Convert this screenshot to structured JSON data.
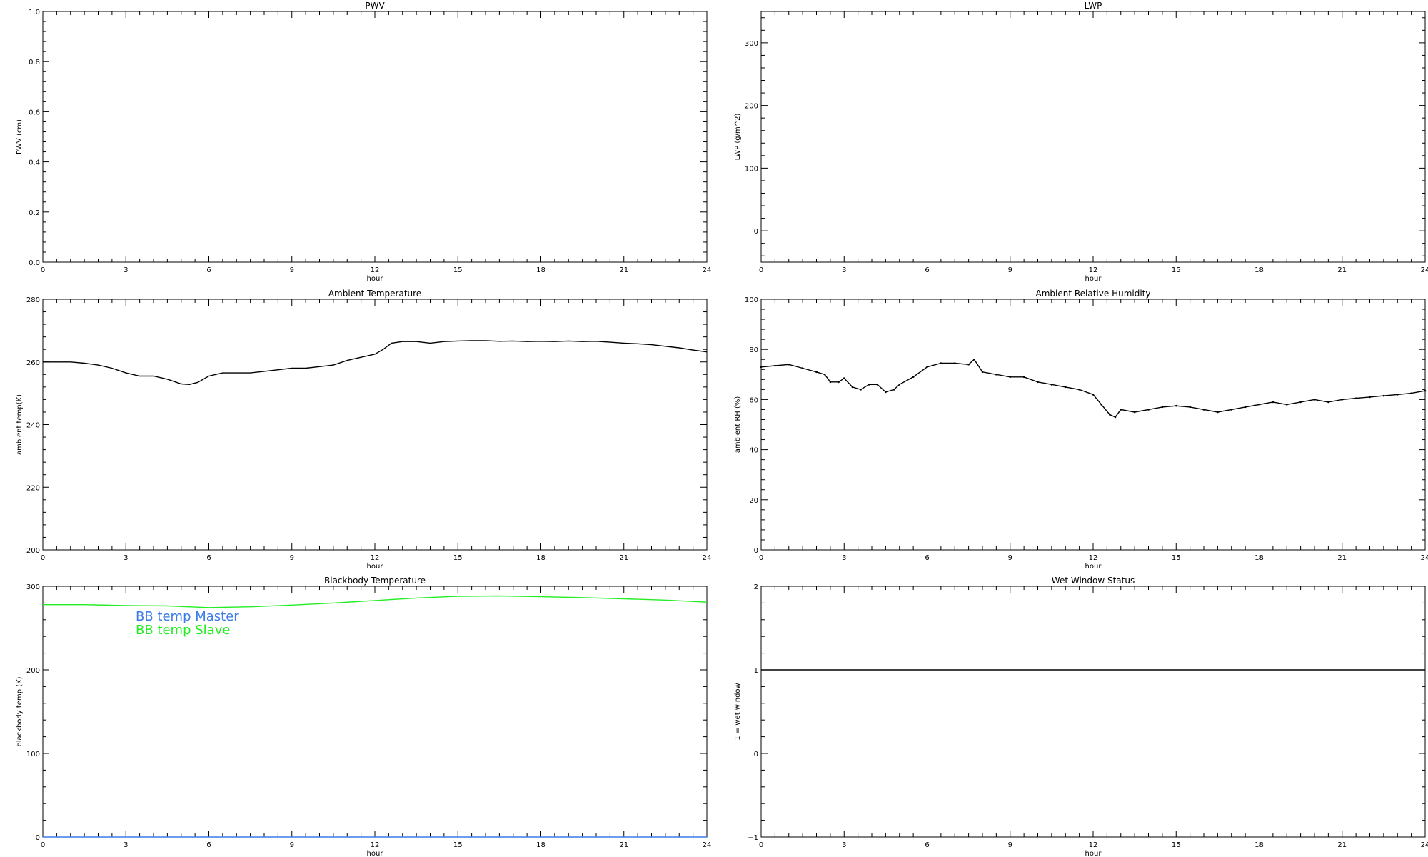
{
  "chart_data": [
    {
      "type": "scatter",
      "title": "PWV",
      "xlabel": "hour",
      "ylabel": "PWV (cm)",
      "xlim": [
        0,
        24
      ],
      "ylim": [
        0,
        1
      ],
      "xticks": [
        "0",
        "3",
        "6",
        "9",
        "12",
        "15",
        "18",
        "21",
        "24"
      ],
      "yticks": [
        "0.0",
        "0.2",
        "0.4",
        "0.6",
        "0.8",
        "1.0"
      ],
      "series": []
    },
    {
      "type": "scatter",
      "title": "LWP",
      "xlabel": "hour",
      "ylabel": "LWP (g/m^2)",
      "xlim": [
        0,
        24
      ],
      "ylim": [
        -50,
        350
      ],
      "xticks": [
        "0",
        "3",
        "6",
        "9",
        "12",
        "15",
        "18",
        "21",
        "24"
      ],
      "yticks": [
        "0",
        "100",
        "200",
        "300"
      ],
      "series": []
    },
    {
      "type": "line",
      "title": "Ambient Temperature",
      "xlabel": "hour",
      "ylabel": "ambient temp(K)",
      "xlim": [
        0,
        24
      ],
      "ylim": [
        200,
        280
      ],
      "xticks": [
        "0",
        "3",
        "6",
        "9",
        "12",
        "15",
        "18",
        "21",
        "24"
      ],
      "yticks": [
        "200",
        "220",
        "240",
        "260",
        "280"
      ],
      "series": [
        {
          "color": "#000000",
          "x": [
            0,
            0.5,
            1,
            1.5,
            2,
            2.5,
            3,
            3.5,
            4,
            4.5,
            5,
            5.3,
            5.6,
            6,
            6.5,
            7,
            7.5,
            8,
            8.5,
            9,
            9.5,
            10,
            10.5,
            11,
            11.5,
            12,
            12.3,
            12.6,
            13,
            13.5,
            14,
            14.5,
            15,
            15.5,
            16,
            16.5,
            17,
            17.5,
            18,
            18.5,
            19,
            19.5,
            20,
            20.5,
            21,
            21.5,
            22,
            22.5,
            23,
            23.5,
            24
          ],
          "y": [
            260,
            260,
            260,
            259.6,
            259,
            258,
            256.5,
            255.5,
            255.5,
            254.5,
            253,
            252.8,
            253.5,
            255.5,
            256.5,
            256.5,
            256.5,
            257,
            257.5,
            258,
            258,
            258.5,
            259,
            260.5,
            261.5,
            262.5,
            264,
            266,
            266.5,
            266.5,
            266,
            266.5,
            266.7,
            266.8,
            266.8,
            266.6,
            266.7,
            266.5,
            266.6,
            266.5,
            266.7,
            266.5,
            266.6,
            266.3,
            266,
            265.8,
            265.5,
            265,
            264.5,
            263.8,
            263.2
          ]
        }
      ]
    },
    {
      "type": "scatter",
      "title": "Ambient Relative Humidity",
      "xlabel": "hour",
      "ylabel": "ambient RH (%)",
      "xlim": [
        0,
        24
      ],
      "ylim": [
        0,
        100
      ],
      "xticks": [
        "0",
        "3",
        "6",
        "9",
        "12",
        "15",
        "18",
        "21",
        "24"
      ],
      "yticks": [
        "0",
        "20",
        "40",
        "60",
        "80",
        "100"
      ],
      "series": [
        {
          "color": "#000000",
          "x": [
            0,
            0.5,
            1,
            1.5,
            2,
            2.3,
            2.5,
            2.8,
            3,
            3.3,
            3.6,
            3.9,
            4.2,
            4.5,
            4.8,
            5,
            5.5,
            6,
            6.5,
            7,
            7.5,
            7.7,
            8,
            8.5,
            9,
            9.5,
            10,
            10.5,
            11,
            11.5,
            12,
            12.3,
            12.6,
            12.8,
            13,
            13.5,
            14,
            14.5,
            15,
            15.5,
            16,
            16.5,
            17,
            17.5,
            18,
            18.5,
            19,
            19.5,
            20,
            20.5,
            21,
            21.5,
            22,
            22.5,
            23,
            23.5,
            24
          ],
          "y": [
            73,
            73.5,
            74,
            72.5,
            71,
            70,
            67,
            67,
            68.5,
            65,
            64,
            66,
            66,
            63,
            64,
            66,
            69,
            73,
            74.5,
            74.5,
            74,
            76,
            71,
            70,
            69,
            69,
            67,
            66,
            65,
            64,
            62,
            58,
            54,
            53,
            56,
            55,
            56,
            57,
            57.5,
            57,
            56,
            55,
            56,
            57,
            58,
            59,
            58,
            59,
            60,
            59,
            60,
            60.5,
            61,
            61.5,
            62,
            62.5,
            63.5
          ]
        }
      ]
    },
    {
      "type": "line",
      "title": "Blackbody Temperature",
      "xlabel": "hour",
      "ylabel": "blackbody temp (K)",
      "xlim": [
        0,
        24
      ],
      "ylim": [
        0,
        300
      ],
      "xticks": [
        "0",
        "3",
        "6",
        "9",
        "12",
        "15",
        "18",
        "21",
        "24"
      ],
      "yticks": [
        "0",
        "100",
        "200",
        "300"
      ],
      "legend_position": "top-left",
      "series": [
        {
          "name": "BB temp Master",
          "color": "#3a7be8",
          "x": [
            0,
            3,
            6,
            9,
            12,
            15,
            18,
            21,
            24
          ],
          "y": [
            0,
            0,
            0,
            0,
            0,
            0,
            0,
            0,
            0
          ]
        },
        {
          "name": "BB temp Slave",
          "color": "#22ee22",
          "x": [
            0,
            1.5,
            3,
            4.5,
            6,
            7.5,
            9,
            10.5,
            12,
            13.5,
            15,
            16.5,
            18,
            19.5,
            21,
            22.5,
            24
          ],
          "y": [
            278,
            278,
            277,
            276.5,
            274.5,
            275.5,
            277.5,
            280,
            283,
            286,
            288,
            288.5,
            287.5,
            286.5,
            285,
            283.5,
            281
          ]
        }
      ]
    },
    {
      "type": "line",
      "title": "Wet Window Status",
      "xlabel": "hour",
      "ylabel": "1 = wet window",
      "xlim": [
        0,
        24
      ],
      "ylim": [
        -1,
        2
      ],
      "xticks": [
        "0",
        "3",
        "6",
        "9",
        "12",
        "15",
        "18",
        "21",
        "24"
      ],
      "yticks": [
        "−1",
        "0",
        "1",
        "2"
      ],
      "series": [
        {
          "color": "#000000",
          "x": [
            0,
            24
          ],
          "y": [
            1,
            1
          ]
        }
      ]
    }
  ]
}
